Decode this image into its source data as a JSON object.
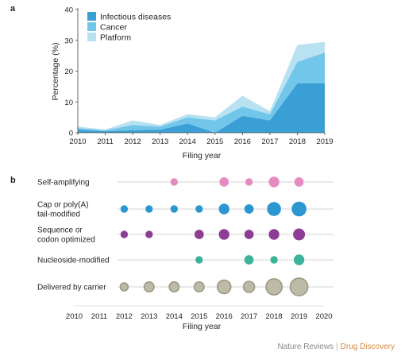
{
  "panel_a_letter": "a",
  "panel_b_letter": "b",
  "credit": {
    "publisher": "Nature Reviews",
    "separator": "|",
    "journal": "Drug Discovery"
  },
  "colors": {
    "infectious": "#3a9fd4",
    "cancer": "#72c6ea",
    "platform": "#b8e1f2",
    "self_amplifying": "#e58bc0",
    "cap_polyA": "#2b96cf",
    "sequence_codon": "#8e3d94",
    "nucleoside": "#3bb39b",
    "carrier": "#bdbaa8",
    "carrier_ring": "#9c9984",
    "row_line": "#c8c8c8",
    "axis": "#444444"
  },
  "chart_data": [
    {
      "type": "area",
      "stacked": true,
      "xlabel": "Filing year",
      "ylabel": "Percentage (%)",
      "x": [
        2010,
        2011,
        2012,
        2013,
        2014,
        2015,
        2016,
        2017,
        2018,
        2019
      ],
      "ylim": [
        0,
        40
      ],
      "yticks": [
        0,
        10,
        20,
        30,
        40
      ],
      "legend_position": "top-left",
      "series": [
        {
          "name": "Infectious diseases",
          "values": [
            1,
            0.5,
            0.8,
            1,
            3,
            0,
            5.5,
            4,
            16,
            16
          ]
        },
        {
          "name": "Cancer",
          "values": [
            0.5,
            0.3,
            1.7,
            1,
            2,
            4,
            3,
            2,
            7,
            10
          ]
        },
        {
          "name": "Platform",
          "values": [
            0.5,
            0.2,
            1.5,
            0.5,
            1,
            1,
            3.5,
            1,
            5.5,
            3.5
          ]
        }
      ]
    },
    {
      "type": "scatter",
      "subtype": "bubble",
      "xlabel": "Filing year",
      "x_ticks": [
        2010,
        2011,
        2012,
        2013,
        2014,
        2015,
        2016,
        2017,
        2018,
        2019,
        2020
      ],
      "categories": [
        {
          "key": "self_amplifying",
          "label_lines": [
            "Self-amplifying"
          ],
          "points": [
            {
              "year": 2014,
              "size": 1
            },
            {
              "year": 2016,
              "size": 2
            },
            {
              "year": 2017,
              "size": 1
            },
            {
              "year": 2018,
              "size": 3
            },
            {
              "year": 2019,
              "size": 2
            }
          ]
        },
        {
          "key": "cap_polyA",
          "label_lines": [
            "Cap or poly(A)",
            "tail-modified"
          ],
          "points": [
            {
              "year": 2012,
              "size": 1
            },
            {
              "year": 2013,
              "size": 1
            },
            {
              "year": 2014,
              "size": 1
            },
            {
              "year": 2015,
              "size": 1
            },
            {
              "year": 2016,
              "size": 3
            },
            {
              "year": 2017,
              "size": 2
            },
            {
              "year": 2018,
              "size": 6
            },
            {
              "year": 2019,
              "size": 7
            }
          ]
        },
        {
          "key": "sequence_codon",
          "label_lines": [
            "Sequence or",
            "codon optimized"
          ],
          "points": [
            {
              "year": 2012,
              "size": 1
            },
            {
              "year": 2013,
              "size": 1
            },
            {
              "year": 2015,
              "size": 2
            },
            {
              "year": 2016,
              "size": 3
            },
            {
              "year": 2017,
              "size": 2
            },
            {
              "year": 2018,
              "size": 3
            },
            {
              "year": 2019,
              "size": 4
            }
          ]
        },
        {
          "key": "nucleoside",
          "label_lines": [
            "Nucleoside-modified"
          ],
          "points": [
            {
              "year": 2015,
              "size": 1
            },
            {
              "year": 2017,
              "size": 2
            },
            {
              "year": 2018,
              "size": 1
            },
            {
              "year": 2019,
              "size": 3
            }
          ]
        },
        {
          "key": "carrier",
          "label_lines": [
            "Delivered by carrier"
          ],
          "points": [
            {
              "year": 2012,
              "size": 1
            },
            {
              "year": 2013,
              "size": 2
            },
            {
              "year": 2014,
              "size": 2
            },
            {
              "year": 2015,
              "size": 2
            },
            {
              "year": 2016,
              "size": 5
            },
            {
              "year": 2017,
              "size": 3
            },
            {
              "year": 2018,
              "size": 8
            },
            {
              "year": 2019,
              "size": 10
            }
          ]
        }
      ]
    }
  ]
}
